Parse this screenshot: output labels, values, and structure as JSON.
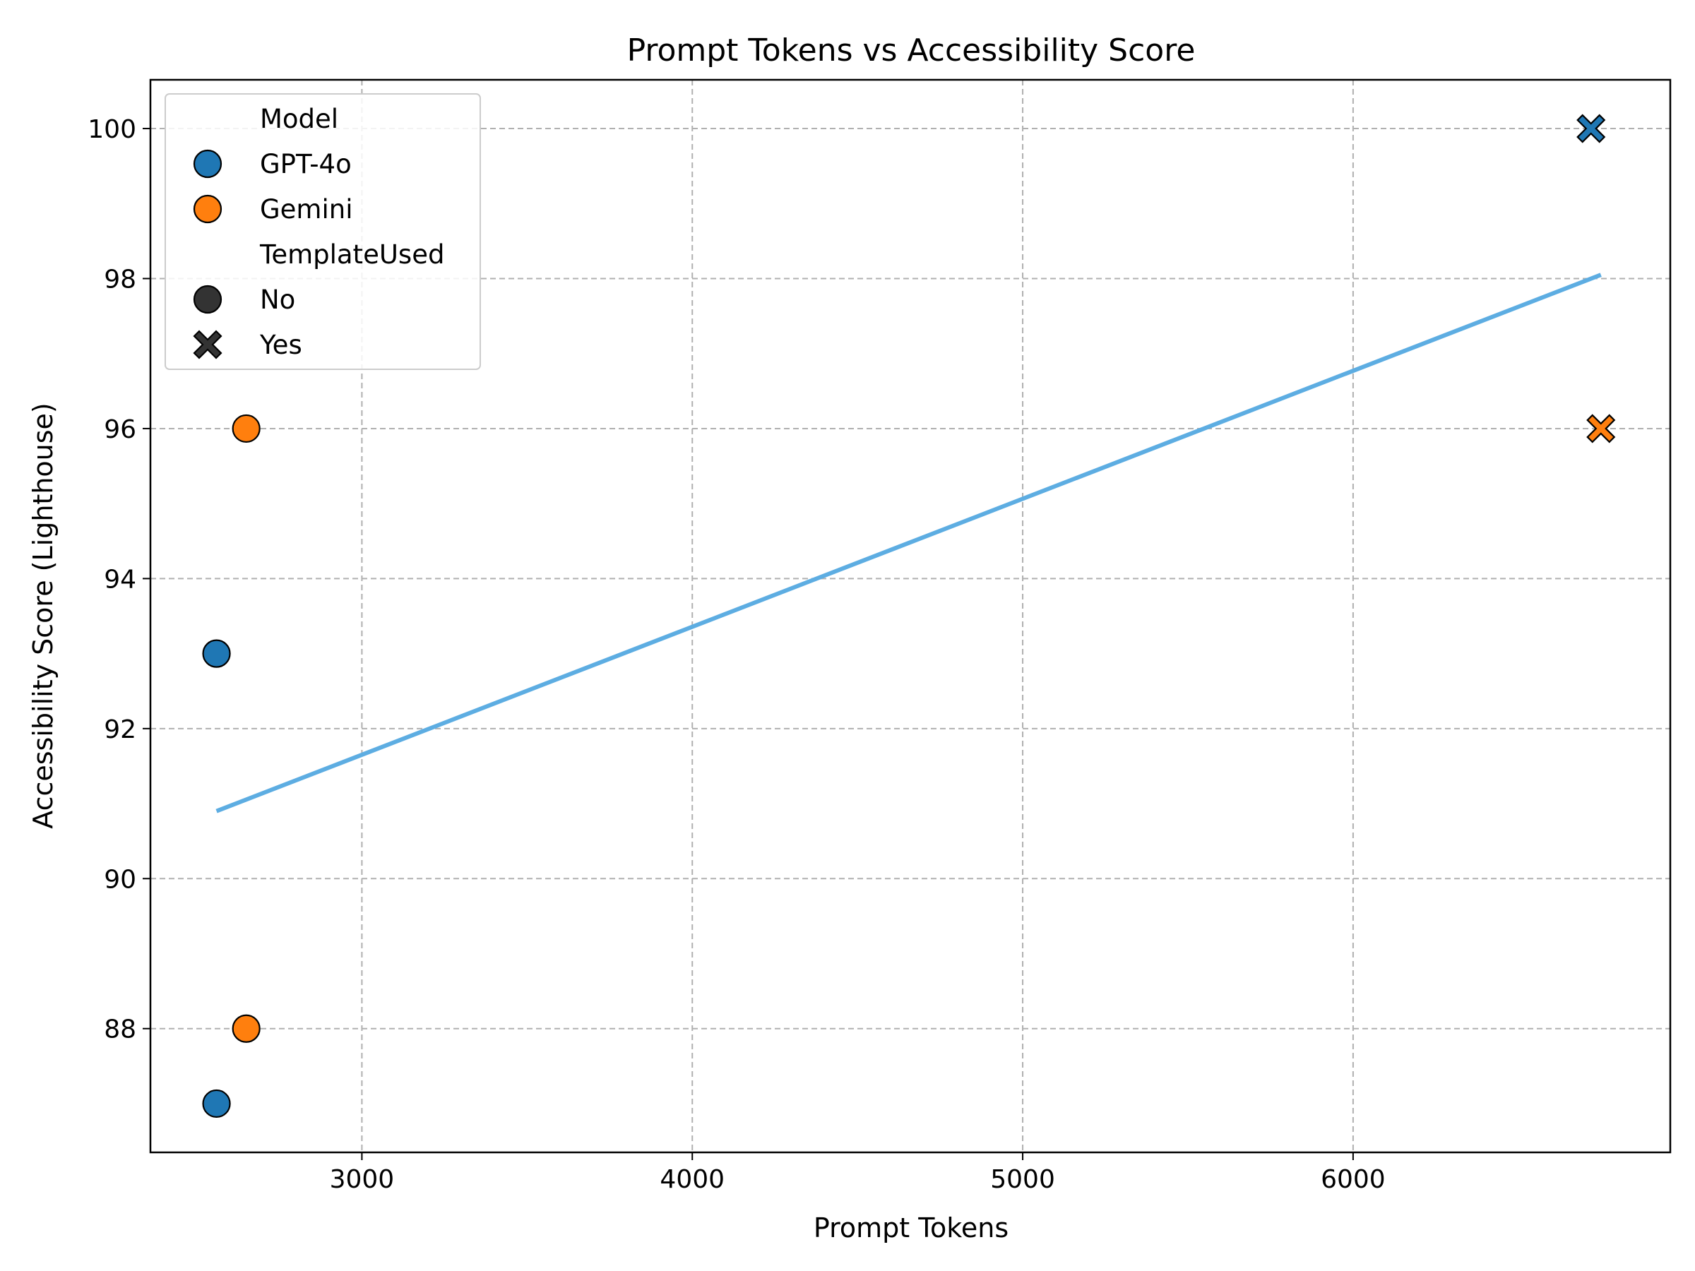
{
  "chart_data": {
    "type": "scatter",
    "title": "Prompt Tokens vs Accessibility Score",
    "xlabel": "Prompt Tokens",
    "ylabel": "Accessibility Score (Lighthouse)",
    "xlim": [
      2360,
      6960
    ],
    "ylim": [
      86.35,
      100.65
    ],
    "xticks": [
      "3000",
      "4000",
      "5000",
      "6000"
    ],
    "yticks": [
      "88",
      "90",
      "92",
      "94",
      "96",
      "98",
      "100"
    ],
    "grid": true,
    "legend_position": "top-left",
    "colors": {
      "GPT-4o": "#1f77b4",
      "Gemini": "#ff7f0e",
      "trend": "#5dade2",
      "marker_style": "#333333"
    },
    "points": [
      {
        "x": 2560,
        "y": 93,
        "model": "GPT-4o",
        "template": "No"
      },
      {
        "x": 2560,
        "y": 87,
        "model": "GPT-4o",
        "template": "No"
      },
      {
        "x": 2650,
        "y": 96,
        "model": "Gemini",
        "template": "No"
      },
      {
        "x": 2650,
        "y": 88,
        "model": "Gemini",
        "template": "No"
      },
      {
        "x": 6720,
        "y": 100,
        "model": "GPT-4o",
        "template": "Yes"
      },
      {
        "x": 6750,
        "y": 96,
        "model": "Gemini",
        "template": "Yes"
      }
    ],
    "trend_line": {
      "x": [
        2560,
        6750
      ],
      "y": [
        90.9,
        98.05
      ]
    },
    "legend": {
      "model_title": "Model",
      "models": [
        "GPT-4o",
        "Gemini"
      ],
      "template_title": "TemplateUsed",
      "templates": [
        "No",
        "Yes"
      ]
    }
  }
}
